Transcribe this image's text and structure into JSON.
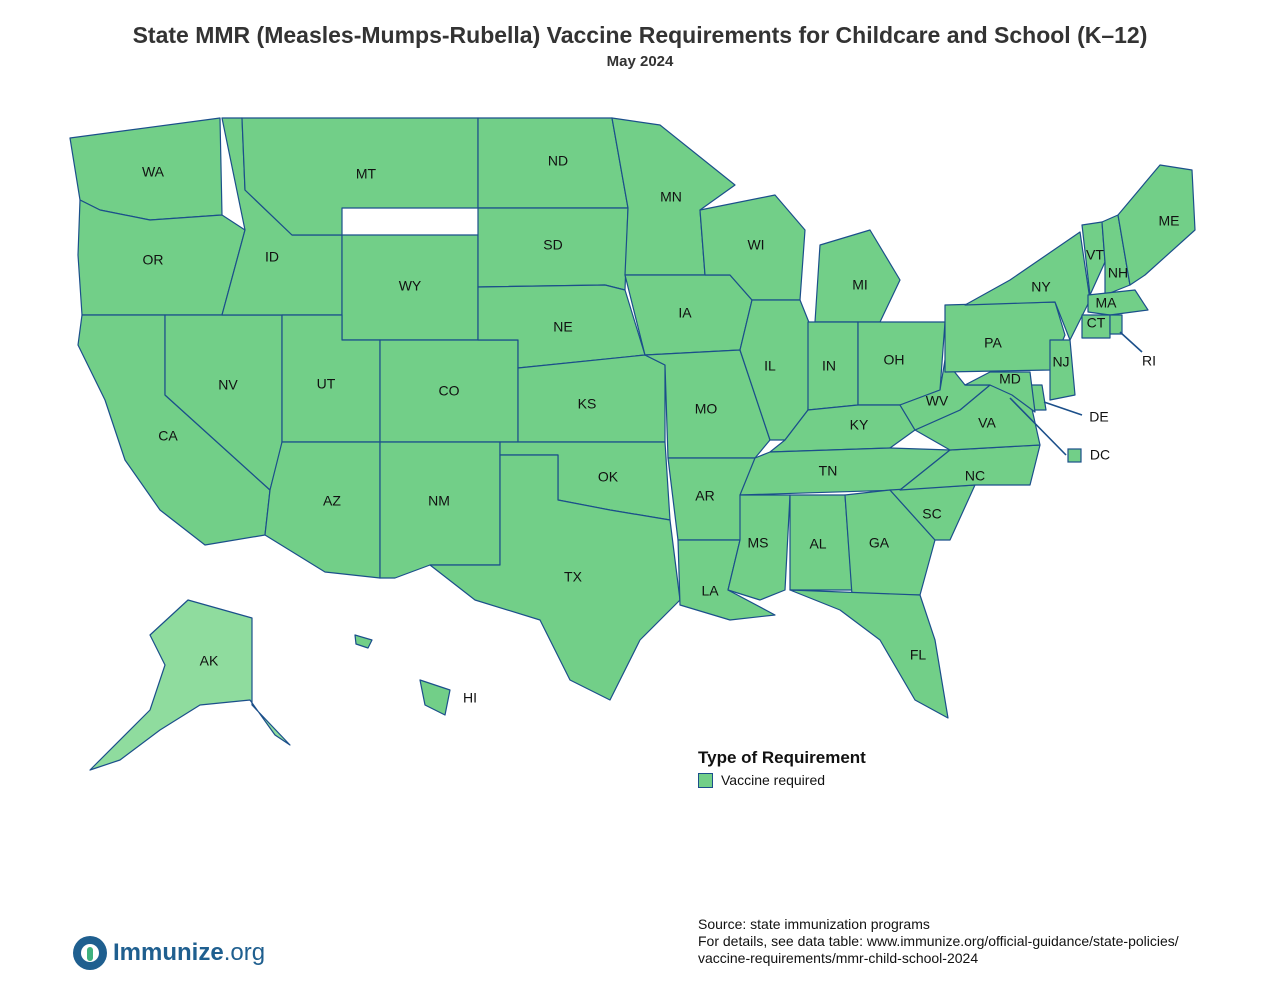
{
  "title": "State MMR (Measles-Mumps-Rubella) Vaccine Requirements for Childcare and School (K–12)",
  "subtitle": "May 2024",
  "colors": {
    "vaccine_required": "#72cf88",
    "alaska_fill": "#8fdc9e",
    "border": "#1b4f8a"
  },
  "states": [
    {
      "code": "WA",
      "requirement": "Vaccine required"
    },
    {
      "code": "OR",
      "requirement": "Vaccine required"
    },
    {
      "code": "CA",
      "requirement": "Vaccine required"
    },
    {
      "code": "NV",
      "requirement": "Vaccine required"
    },
    {
      "code": "ID",
      "requirement": "Vaccine required"
    },
    {
      "code": "MT",
      "requirement": "Vaccine required"
    },
    {
      "code": "WY",
      "requirement": "Vaccine required"
    },
    {
      "code": "UT",
      "requirement": "Vaccine required"
    },
    {
      "code": "CO",
      "requirement": "Vaccine required"
    },
    {
      "code": "AZ",
      "requirement": "Vaccine required"
    },
    {
      "code": "NM",
      "requirement": "Vaccine required"
    },
    {
      "code": "ND",
      "requirement": "Vaccine required"
    },
    {
      "code": "SD",
      "requirement": "Vaccine required"
    },
    {
      "code": "NE",
      "requirement": "Vaccine required"
    },
    {
      "code": "KS",
      "requirement": "Vaccine required"
    },
    {
      "code": "OK",
      "requirement": "Vaccine required"
    },
    {
      "code": "TX",
      "requirement": "Vaccine required"
    },
    {
      "code": "MN",
      "requirement": "Vaccine required"
    },
    {
      "code": "IA",
      "requirement": "Vaccine required"
    },
    {
      "code": "MO",
      "requirement": "Vaccine required"
    },
    {
      "code": "AR",
      "requirement": "Vaccine required"
    },
    {
      "code": "LA",
      "requirement": "Vaccine required"
    },
    {
      "code": "WI",
      "requirement": "Vaccine required"
    },
    {
      "code": "IL",
      "requirement": "Vaccine required"
    },
    {
      "code": "MI",
      "requirement": "Vaccine required"
    },
    {
      "code": "IN",
      "requirement": "Vaccine required"
    },
    {
      "code": "OH",
      "requirement": "Vaccine required"
    },
    {
      "code": "KY",
      "requirement": "Vaccine required"
    },
    {
      "code": "TN",
      "requirement": "Vaccine required"
    },
    {
      "code": "MS",
      "requirement": "Vaccine required"
    },
    {
      "code": "AL",
      "requirement": "Vaccine required"
    },
    {
      "code": "GA",
      "requirement": "Vaccine required"
    },
    {
      "code": "FL",
      "requirement": "Vaccine required"
    },
    {
      "code": "SC",
      "requirement": "Vaccine required"
    },
    {
      "code": "NC",
      "requirement": "Vaccine required"
    },
    {
      "code": "VA",
      "requirement": "Vaccine required"
    },
    {
      "code": "WV",
      "requirement": "Vaccine required"
    },
    {
      "code": "PA",
      "requirement": "Vaccine required"
    },
    {
      "code": "NY",
      "requirement": "Vaccine required"
    },
    {
      "code": "VT",
      "requirement": "Vaccine required"
    },
    {
      "code": "NH",
      "requirement": "Vaccine required"
    },
    {
      "code": "ME",
      "requirement": "Vaccine required"
    },
    {
      "code": "MA",
      "requirement": "Vaccine required"
    },
    {
      "code": "CT",
      "requirement": "Vaccine required"
    },
    {
      "code": "RI",
      "requirement": "Vaccine required"
    },
    {
      "code": "NJ",
      "requirement": "Vaccine required"
    },
    {
      "code": "DE",
      "requirement": "Vaccine required"
    },
    {
      "code": "MD",
      "requirement": "Vaccine required"
    },
    {
      "code": "DC",
      "requirement": "Vaccine required"
    },
    {
      "code": "AK",
      "requirement": "Vaccine required"
    },
    {
      "code": "HI",
      "requirement": "Vaccine required"
    }
  ],
  "legend": {
    "title": "Type of Requirement",
    "items": [
      "Vaccine required"
    ]
  },
  "source": {
    "line1": "Source: state immunization programs",
    "line2": "For details, see data table: www.immunize.org/official-guidance/state-policies/",
    "line3": "vaccine-requirements/mmr-child-school-2024"
  },
  "logo": {
    "name": "Immunize",
    "suffix": ".org"
  }
}
